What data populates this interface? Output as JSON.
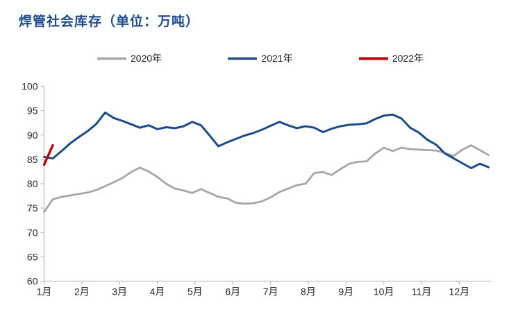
{
  "chart_data": {
    "type": "line",
    "title": "焊管社会库存（单位：万吨）",
    "title_color": "#1C4A8C",
    "legend_position": "top",
    "grid": false,
    "x_axis": {
      "categories": [
        "1月",
        "2月",
        "3月",
        "4月",
        "5月",
        "6月",
        "7月",
        "8月",
        "9月",
        "10月",
        "11月",
        "12月"
      ],
      "points_per_year": 52,
      "unit": "周 (weekly points)"
    },
    "y_axis": {
      "min": 60,
      "max": 100,
      "step": 5,
      "ticks": [
        60,
        65,
        70,
        75,
        80,
        85,
        90,
        95,
        100
      ]
    },
    "axis_color": "#BFBFBF",
    "label_color": "#262626",
    "series": [
      {
        "name": "2020年",
        "color": "#A6A6A6",
        "width": 2.8,
        "values": [
          74.2,
          76.8,
          77.3,
          77.6,
          77.9,
          78.2,
          78.7,
          79.5,
          80.3,
          81.2,
          82.4,
          83.3,
          82.5,
          81.4,
          80.0,
          79.0,
          78.6,
          78.1,
          78.9,
          78.1,
          77.3,
          77.0,
          76.1,
          75.9,
          76.0,
          76.4,
          77.2,
          78.3,
          79.0,
          79.7,
          80.0,
          82.2,
          82.4,
          81.8,
          83.0,
          84.1,
          84.5,
          84.6,
          86.2,
          87.4,
          86.7,
          87.4,
          87.1,
          87.0,
          86.9,
          86.8,
          86.3,
          85.7,
          87.0,
          87.9,
          86.9,
          85.9
        ]
      },
      {
        "name": "2021年",
        "color": "#1B4B8C",
        "width": 3,
        "values": [
          85.5,
          85.2,
          86.7,
          88.3,
          89.6,
          90.8,
          92.3,
          94.6,
          93.5,
          92.9,
          92.2,
          91.5,
          92.0,
          91.2,
          91.6,
          91.4,
          91.8,
          92.7,
          92.0,
          89.9,
          87.7,
          88.5,
          89.2,
          89.9,
          90.4,
          91.1,
          91.9,
          92.7,
          92.0,
          91.4,
          91.8,
          91.5,
          90.6,
          91.3,
          91.8,
          92.1,
          92.2,
          92.4,
          93.3,
          94.0,
          94.2,
          93.4,
          91.5,
          90.5,
          89.0,
          88.0,
          86.2,
          85.2,
          84.2,
          83.2,
          84.1,
          83.4
        ]
      },
      {
        "name": "2022年",
        "color": "#C00000",
        "width": 3.4,
        "values": [
          83.9,
          87.9
        ]
      }
    ]
  }
}
